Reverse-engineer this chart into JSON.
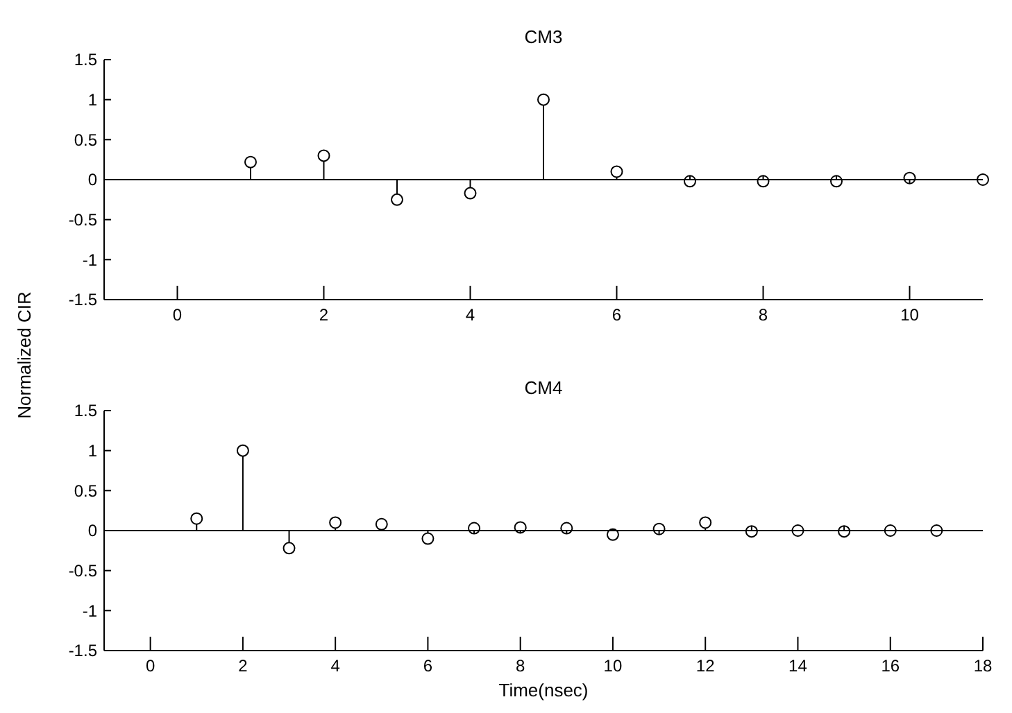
{
  "chart_data": [
    {
      "type": "lollipop",
      "title": "CM3",
      "ylabel": "Normalized CIR",
      "x": [
        1,
        2,
        3,
        4,
        5,
        6,
        7,
        8,
        9,
        10,
        11
      ],
      "series": [
        {
          "color": "#000000",
          "values": [
            0.22,
            0.3,
            -0.25,
            -0.17,
            1,
            0.1,
            -0.02,
            -0.02,
            -0.02,
            0.02,
            0
          ]
        }
      ],
      "xlim": [
        -1,
        11
      ],
      "xticks": [
        0,
        2,
        4,
        6,
        8,
        10
      ],
      "ylim": [
        -1.5,
        1.5
      ],
      "yticks": [
        -1.5,
        -1,
        -0.5,
        0,
        0.5,
        1,
        1.5
      ],
      "marker": "circle"
    },
    {
      "type": "lollipop",
      "title": "CM4",
      "xlabel": "Time(nsec)",
      "x": [
        1,
        2,
        3,
        4,
        5,
        6,
        7,
        8,
        9,
        10,
        11,
        12,
        13,
        14,
        15,
        16,
        17
      ],
      "series": [
        {
          "color": "#000000",
          "values": [
            0.15,
            1,
            -0.22,
            0.1,
            0.08,
            -0.1,
            0.03,
            0.04,
            0.03,
            -0.05,
            0.02,
            0.1,
            -0.01,
            0,
            -0.01,
            0,
            0
          ]
        }
      ],
      "xlim": [
        -1,
        18
      ],
      "xticks": [
        0,
        2,
        4,
        6,
        8,
        10,
        12,
        14,
        16,
        18
      ],
      "ylim": [
        -1.5,
        1.5
      ],
      "yticks": [
        -1.5,
        -1,
        -0.5,
        0,
        0.5,
        1,
        1.5
      ],
      "marker": "circle"
    }
  ]
}
